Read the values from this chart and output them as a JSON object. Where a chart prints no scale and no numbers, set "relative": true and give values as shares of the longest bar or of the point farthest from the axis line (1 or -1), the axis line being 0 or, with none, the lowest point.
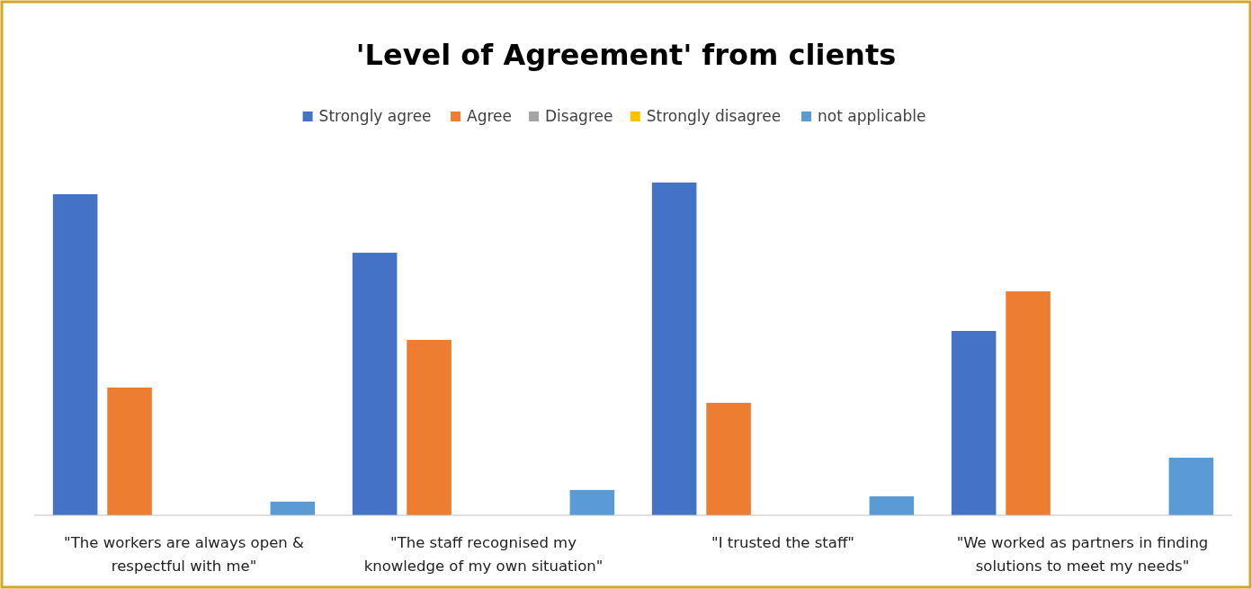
{
  "chart_data": {
    "type": "bar",
    "title": "'Level of Agreement' from clients",
    "relative": true,
    "legend": "top",
    "categories": [
      "\"The workers are always open & respectful with me\"",
      "\"The staff recognised my knowledge of my own situation\"",
      "\"I trusted the staff\"",
      "\"We worked as partners in finding solutions to meet my needs\""
    ],
    "series": [
      {
        "name": "Strongly agree",
        "color": "#4472c4",
        "values": [
          0.965,
          0.789,
          1,
          0.554
        ]
      },
      {
        "name": "Agree",
        "color": "#ed7d31",
        "values": [
          0.384,
          0.527,
          0.338,
          0.673
        ]
      },
      {
        "name": "Disagree",
        "color": "#a5a5a5",
        "values": [
          0,
          0,
          0,
          0
        ]
      },
      {
        "name": "Strongly disagree",
        "color": "#ffc000",
        "values": [
          0,
          0,
          0,
          0
        ]
      },
      {
        "name": "not applicable",
        "color": "#5b9bd5",
        "values": [
          0.041,
          0.076,
          0.057,
          0.173
        ]
      }
    ]
  }
}
